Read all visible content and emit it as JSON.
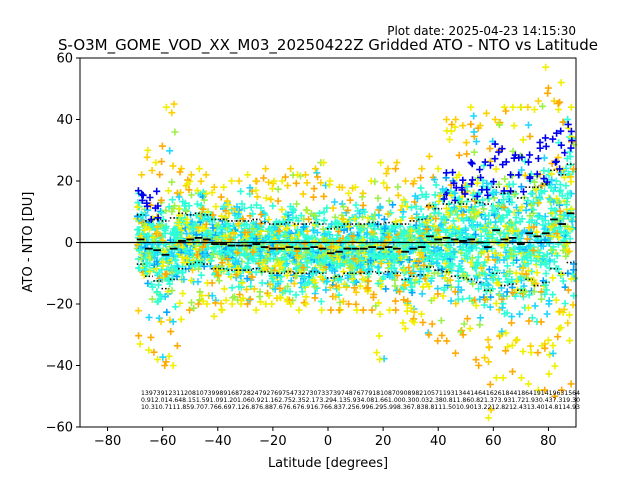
{
  "plot_date": "Plot date: 2025-04-23 14:15:30",
  "chart_data": {
    "type": "scatter",
    "title": "S-O3M_GOME_VOD_XX_M03_20250422Z Gridded ATO - NTO vs Latitude",
    "xlabel": "Latitude [degrees]",
    "ylabel": "ATO - NTO [DU]",
    "xlim": [
      -90,
      90
    ],
    "ylim": [
      -60,
      60
    ],
    "x_ticks": [
      -80,
      -60,
      -40,
      -20,
      0,
      20,
      40,
      60,
      80
    ],
    "y_ticks": [
      -60,
      -40,
      -20,
      0,
      20,
      40,
      60
    ],
    "x_tick_labels": [
      "−80",
      "−60",
      "−40",
      "−20",
      "0",
      "20",
      "40",
      "60",
      "80"
    ],
    "y_tick_labels": [
      "−60",
      "−40",
      "−20",
      "0",
      "20",
      "40",
      "60"
    ],
    "grid": false,
    "reference_line_y": 0,
    "colors": {
      "dense": "#2effd6",
      "mid1": "#1ed6ff",
      "mid2": "#00a6ff",
      "low": "#0000ee",
      "green": "#9bf04a",
      "yellow": "#f0f000",
      "gold": "#ffd000",
      "orange": "#ffaa00",
      "median": "#000000"
    },
    "bins": [
      {
        "lat": -68,
        "mean": 1.0,
        "std": 8.0,
        "lo": -33,
        "hi": 22
      },
      {
        "lat": -65,
        "mean": -2.0,
        "std": 9.0,
        "lo": -35,
        "hi": 30
      },
      {
        "lat": -62,
        "mean": -2.5,
        "std": 10.0,
        "lo": -38,
        "hi": 26
      },
      {
        "lat": -59,
        "mean": -4.0,
        "std": 11.0,
        "lo": -40,
        "hi": 44
      },
      {
        "lat": -56,
        "mean": -2.0,
        "std": 10.0,
        "lo": -40,
        "hi": 45
      },
      {
        "lat": -53,
        "mean": 0.5,
        "std": 9.0,
        "lo": -25,
        "hi": 24
      },
      {
        "lat": -50,
        "mean": 1.0,
        "std": 8.0,
        "lo": -22,
        "hi": 22
      },
      {
        "lat": -47,
        "mean": 1.5,
        "std": 8.0,
        "lo": -20,
        "hi": 24
      },
      {
        "lat": -44,
        "mean": 1.0,
        "std": 8.0,
        "lo": -20,
        "hi": 22
      },
      {
        "lat": -41,
        "mean": -0.5,
        "std": 8.0,
        "lo": -24,
        "hi": 18
      },
      {
        "lat": -38,
        "mean": -0.5,
        "std": 8.0,
        "lo": -22,
        "hi": 18
      },
      {
        "lat": -35,
        "mean": -1.0,
        "std": 8.0,
        "lo": -20,
        "hi": 20
      },
      {
        "lat": -32,
        "mean": -1.0,
        "std": 8.0,
        "lo": -20,
        "hi": 20
      },
      {
        "lat": -29,
        "mean": -1.0,
        "std": 8.0,
        "lo": -20,
        "hi": 22
      },
      {
        "lat": -26,
        "mean": -0.5,
        "std": 8.0,
        "lo": -22,
        "hi": 20
      },
      {
        "lat": -23,
        "mean": -1.5,
        "std": 8.0,
        "lo": -20,
        "hi": 24
      },
      {
        "lat": -20,
        "mean": -2.0,
        "std": 8.0,
        "lo": -20,
        "hi": 20
      },
      {
        "lat": -17,
        "mean": -2.0,
        "std": 8.0,
        "lo": -18,
        "hi": 20
      },
      {
        "lat": -14,
        "mean": -1.5,
        "std": 8.0,
        "lo": -20,
        "hi": 24
      },
      {
        "lat": -11,
        "mean": -2.0,
        "std": 8.0,
        "lo": -22,
        "hi": 22
      },
      {
        "lat": -8,
        "mean": -2.0,
        "std": 8.0,
        "lo": -20,
        "hi": 22
      },
      {
        "lat": -5,
        "mean": -1.5,
        "std": 8.0,
        "lo": -18,
        "hi": 24
      },
      {
        "lat": -2,
        "mean": -2.0,
        "std": 8.0,
        "lo": -22,
        "hi": 26
      },
      {
        "lat": 1,
        "mean": -3.5,
        "std": 8.0,
        "lo": -22,
        "hi": 20
      },
      {
        "lat": 4,
        "mean": -3.0,
        "std": 8.0,
        "lo": -22,
        "hi": 18
      },
      {
        "lat": 7,
        "mean": -2.0,
        "std": 8.0,
        "lo": -20,
        "hi": 16
      },
      {
        "lat": 10,
        "mean": -2.0,
        "std": 8.0,
        "lo": -22,
        "hi": 18
      },
      {
        "lat": 13,
        "mean": -2.0,
        "std": 8.0,
        "lo": -22,
        "hi": 16
      },
      {
        "lat": 16,
        "mean": -1.5,
        "std": 8.0,
        "lo": -22,
        "hi": 20
      },
      {
        "lat": 19,
        "mean": -2.0,
        "std": 8.0,
        "lo": -38,
        "hi": 26
      },
      {
        "lat": 22,
        "mean": -1.5,
        "std": 8.0,
        "lo": -22,
        "hi": 24
      },
      {
        "lat": 25,
        "mean": -2.0,
        "std": 8.0,
        "lo": -22,
        "hi": 26
      },
      {
        "lat": 28,
        "mean": -3.0,
        "std": 9.0,
        "lo": -28,
        "hi": 20
      },
      {
        "lat": 31,
        "mean": -2.0,
        "std": 9.0,
        "lo": -26,
        "hi": 20
      },
      {
        "lat": 34,
        "mean": -1.5,
        "std": 9.0,
        "lo": -26,
        "hi": 24
      },
      {
        "lat": 37,
        "mean": 2.0,
        "std": 10.0,
        "lo": -30,
        "hi": 28
      },
      {
        "lat": 40,
        "mean": 1.0,
        "std": 10.0,
        "lo": -32,
        "hi": 24
      },
      {
        "lat": 43,
        "mean": 1.5,
        "std": 11.0,
        "lo": -32,
        "hi": 40
      },
      {
        "lat": 46,
        "mean": 1.0,
        "std": 12.0,
        "lo": -36,
        "hi": 40
      },
      {
        "lat": 49,
        "mean": 0.5,
        "std": 12.0,
        "lo": -30,
        "hi": 38
      },
      {
        "lat": 52,
        "mean": 1.0,
        "std": 13.0,
        "lo": -28,
        "hi": 44
      },
      {
        "lat": 55,
        "mean": 0.0,
        "std": 13.0,
        "lo": -40,
        "hi": 38
      },
      {
        "lat": 58,
        "mean": -1.5,
        "std": 14.0,
        "lo": -57,
        "hi": 42
      },
      {
        "lat": 61,
        "mean": 4.0,
        "std": 14.0,
        "lo": -44,
        "hi": 40
      },
      {
        "lat": 64,
        "mean": 1.0,
        "std": 15.0,
        "lo": -44,
        "hi": 44
      },
      {
        "lat": 67,
        "mean": 1.5,
        "std": 15.0,
        "lo": -42,
        "hi": 44
      },
      {
        "lat": 70,
        "mean": -0.5,
        "std": 15.0,
        "lo": -44,
        "hi": 44
      },
      {
        "lat": 73,
        "mean": 3.0,
        "std": 15.0,
        "lo": -46,
        "hi": 44
      },
      {
        "lat": 76,
        "mean": 2.0,
        "std": 16.0,
        "lo": -48,
        "hi": 46
      },
      {
        "lat": 79,
        "mean": 3.0,
        "std": 16.0,
        "lo": -48,
        "hi": 57
      },
      {
        "lat": 82,
        "mean": 7.5,
        "std": 16.0,
        "lo": -50,
        "hi": 46
      },
      {
        "lat": 85,
        "mean": 6.0,
        "std": 16.0,
        "lo": -48,
        "hi": 52
      },
      {
        "lat": 88,
        "mean": 9.5,
        "std": 16.0,
        "lo": -46,
        "hi": 44
      }
    ],
    "stats_rows": [
      [
        "139",
        "739",
        "1231",
        "1208",
        "1073",
        "998",
        "916",
        "872",
        "824",
        "792",
        "769",
        "754",
        "732",
        "730",
        "733",
        "739",
        "748",
        "767",
        "791",
        "810",
        "870",
        "908",
        "982",
        "1057",
        "1193",
        "1344",
        "1464",
        "1626",
        "1844",
        "1864",
        "1914",
        "1963",
        "1564"
      ],
      [
        "0.91",
        "2.01",
        "4.64",
        "8.15",
        "1.59",
        "1.09",
        "1.20",
        "1.06",
        "0.92",
        "1.16",
        "2.75",
        "2.35",
        "2.17",
        "3.29",
        "4.13",
        "5.93",
        "4.08",
        "1.66",
        "1.00",
        "0.30",
        "0.03",
        "2.38",
        "0.81",
        "1.86",
        "0.82",
        "1.37",
        "3.93",
        "1.72",
        "1.93",
        "0.43",
        "7.31",
        "9.30"
      ],
      [
        "10.3",
        "10.71",
        "11.85",
        "9.70",
        "7.76",
        "6.69",
        "7.12",
        "6.87",
        "6.88",
        "7.67",
        "6.67",
        "6.91",
        "6.76",
        "6.83",
        "7.25",
        "6.99",
        "6.29",
        "5.99",
        "8.36",
        "7.83",
        "8.81",
        "11.50",
        "10.90",
        "13.22",
        "12.82",
        "12.43",
        "13.40",
        "14.81",
        "14.93"
      ]
    ]
  }
}
